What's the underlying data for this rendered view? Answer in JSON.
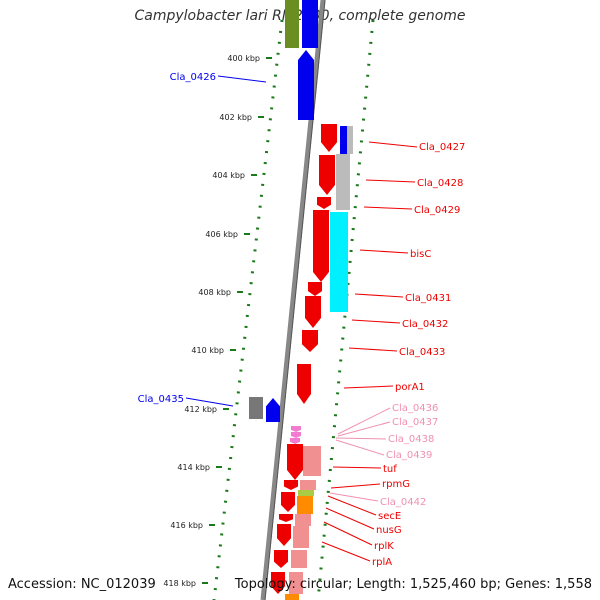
{
  "title": "Campylobacter lari RM2100, complete genome",
  "footer": {
    "accession": "Accession: NC_012039",
    "stats": "Topology: circular; Length: 1,525,460 bp; Genes: 1,558"
  },
  "colors": {
    "blue": "#0000ee",
    "red": "#ee0000",
    "pink": "#f090b0",
    "cyan": "#00f0ff",
    "grey": "#777777",
    "green_dots": "#1a7a1a"
  },
  "axis_ticks": [
    {
      "label": "400 kbp"
    },
    {
      "label": "402 kbp"
    },
    {
      "label": "404 kbp"
    },
    {
      "label": "406 kbp"
    },
    {
      "label": "408 kbp"
    },
    {
      "label": "410 kbp"
    },
    {
      "label": "412 kbp"
    },
    {
      "label": "414 kbp"
    },
    {
      "label": "416 kbp"
    },
    {
      "label": "418 kbp"
    }
  ],
  "gene_labels": [
    {
      "name": "Cla_0426",
      "color": "blue"
    },
    {
      "name": "Cla_0427",
      "color": "red"
    },
    {
      "name": "Cla_0428",
      "color": "red"
    },
    {
      "name": "Cla_0429",
      "color": "red"
    },
    {
      "name": "bisC",
      "color": "red"
    },
    {
      "name": "Cla_0431",
      "color": "red"
    },
    {
      "name": "Cla_0432",
      "color": "red"
    },
    {
      "name": "Cla_0433",
      "color": "red"
    },
    {
      "name": "porA1",
      "color": "red"
    },
    {
      "name": "Cla_0435",
      "color": "blue"
    },
    {
      "name": "Cla_0436",
      "color": "pink"
    },
    {
      "name": "Cla_0437",
      "color": "pink"
    },
    {
      "name": "Cla_0438",
      "color": "pink"
    },
    {
      "name": "Cla_0439",
      "color": "pink"
    },
    {
      "name": "tuf",
      "color": "red"
    },
    {
      "name": "rpmG",
      "color": "red"
    },
    {
      "name": "Cla_0442",
      "color": "pink"
    },
    {
      "name": "secE",
      "color": "red"
    },
    {
      "name": "nusG",
      "color": "red"
    },
    {
      "name": "rplK",
      "color": "red"
    },
    {
      "name": "rplA",
      "color": "red"
    }
  ]
}
